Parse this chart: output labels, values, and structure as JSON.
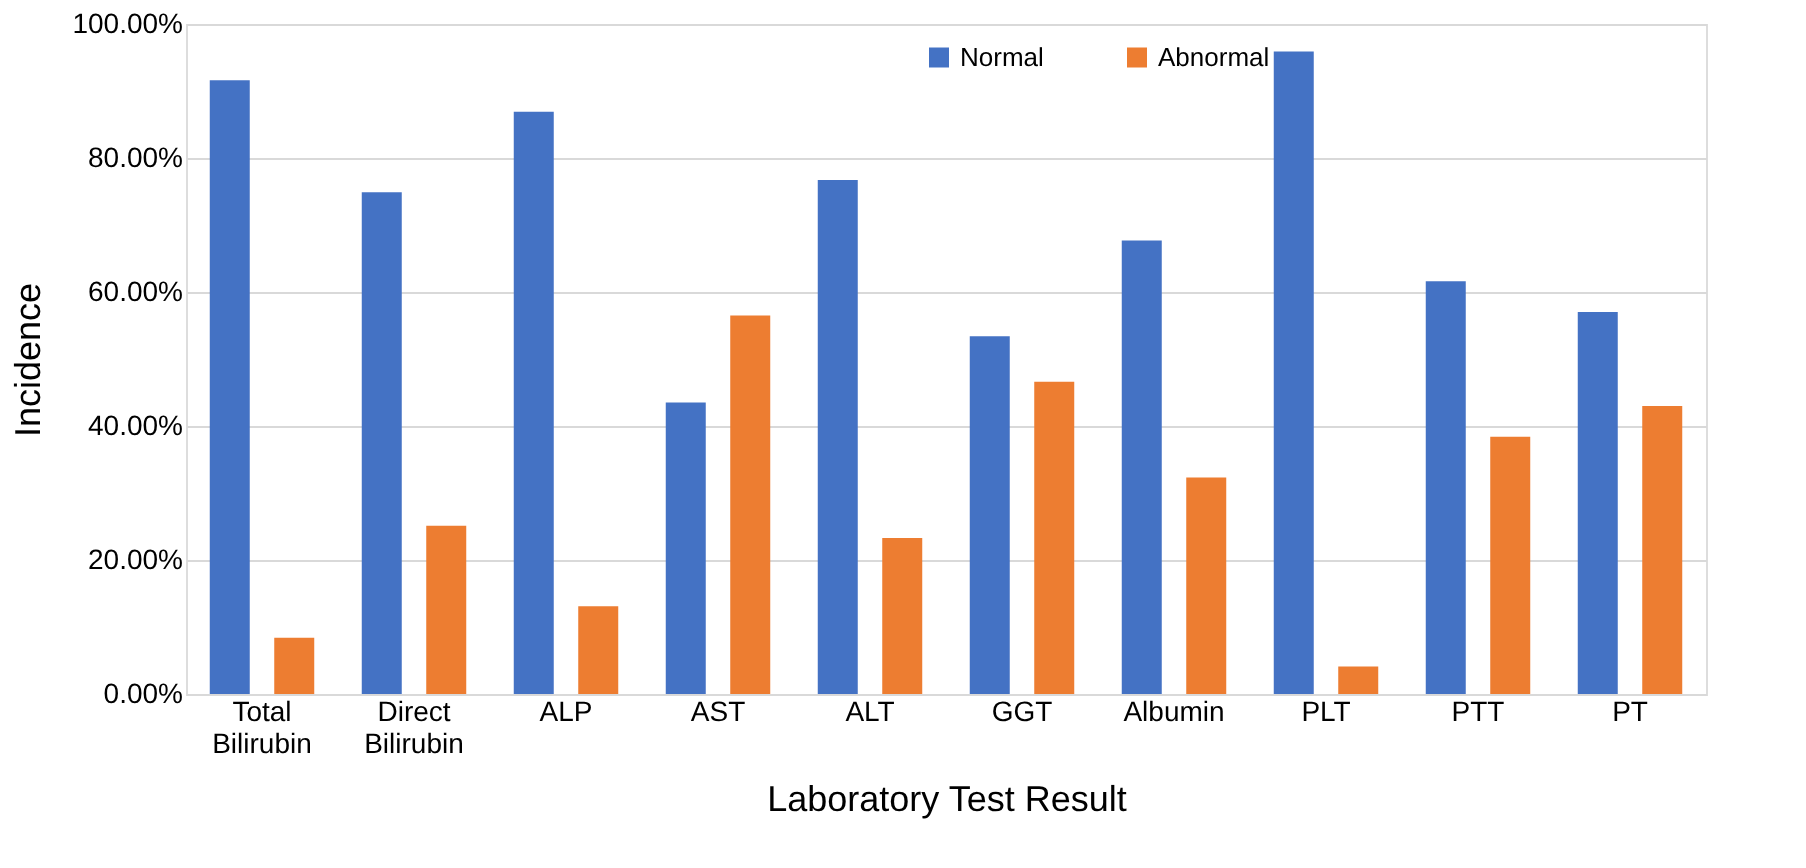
{
  "chart_data": {
    "type": "bar",
    "xlabel": "Laboratory Test Result",
    "ylabel": "Incidence",
    "categories": [
      "Total Bilirubin",
      "Direct Bilirubin",
      "ALP",
      "AST",
      "ALT",
      "GGT",
      "Albumin",
      "PLT",
      "PTT",
      "PT"
    ],
    "series": [
      {
        "name": "Normal",
        "color": "#4472c4",
        "values": [
          91.6,
          74.9,
          86.9,
          43.5,
          76.7,
          53.4,
          67.7,
          95.9,
          61.6,
          57.0
        ]
      },
      {
        "name": "Abnormal",
        "color": "#ed7d31",
        "values": [
          8.4,
          25.1,
          13.1,
          56.5,
          23.3,
          46.6,
          32.3,
          4.1,
          38.4,
          43.0
        ]
      }
    ],
    "ylim": [
      0,
      100
    ],
    "yticks": [
      {
        "value": 0,
        "label": "0.00%"
      },
      {
        "value": 20,
        "label": "20.00%"
      },
      {
        "value": 40,
        "label": "40.00%"
      },
      {
        "value": 60,
        "label": "60.00%"
      },
      {
        "value": 80,
        "label": "80.00%"
      },
      {
        "value": 100,
        "label": "100.00%"
      }
    ],
    "grid": "y",
    "legend": "top"
  }
}
